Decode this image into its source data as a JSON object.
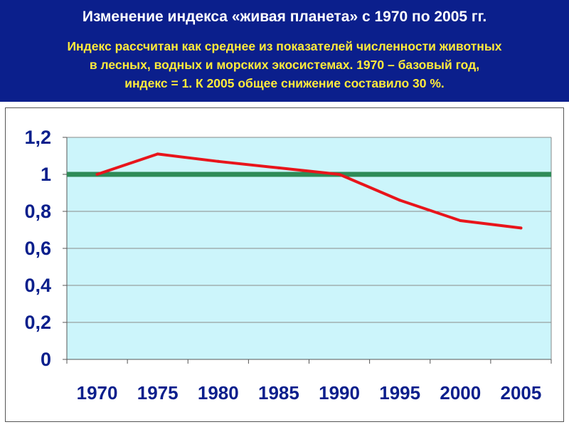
{
  "header": {
    "title": "Изменение индекса «живая планета» с 1970 по 2005 гг.",
    "subtitle_lines": [
      "Индекс рассчитан как среднее из показателей численности животных",
      "в лесных,  водных и морских экосистемах.  1970 – базовый год,",
      "индекс = 1. К 2005  общее снижение составило 30 %."
    ]
  },
  "colors": {
    "header_bg": "#0b1f8c",
    "title": "#ffffff",
    "subtitle": "#ffeb3b",
    "plot_bg": "#ccf5fb",
    "series_line": "#e8151b",
    "baseline": "#2e8b57",
    "tick_text": "#0b1f8c"
  },
  "chart_data": {
    "type": "line",
    "title": "",
    "xlabel": "",
    "ylabel": "",
    "categories": [
      "1970",
      "1975",
      "1980",
      "1985",
      "1990",
      "1995",
      "2000",
      "2005"
    ],
    "y_tick_labels": [
      "0",
      "0,2",
      "0,4",
      "0,6",
      "0,8",
      "1",
      "1,2"
    ],
    "y_tick_values": [
      0,
      0.2,
      0.4,
      0.6,
      0.8,
      1,
      1.2
    ],
    "ylim": [
      0,
      1.2
    ],
    "grid": true,
    "series": [
      {
        "values": [
          1.0,
          1.11,
          1.07,
          1.035,
          1.0,
          0.86,
          0.75,
          0.71
        ]
      }
    ],
    "reference_line": {
      "value": 1.0
    }
  }
}
